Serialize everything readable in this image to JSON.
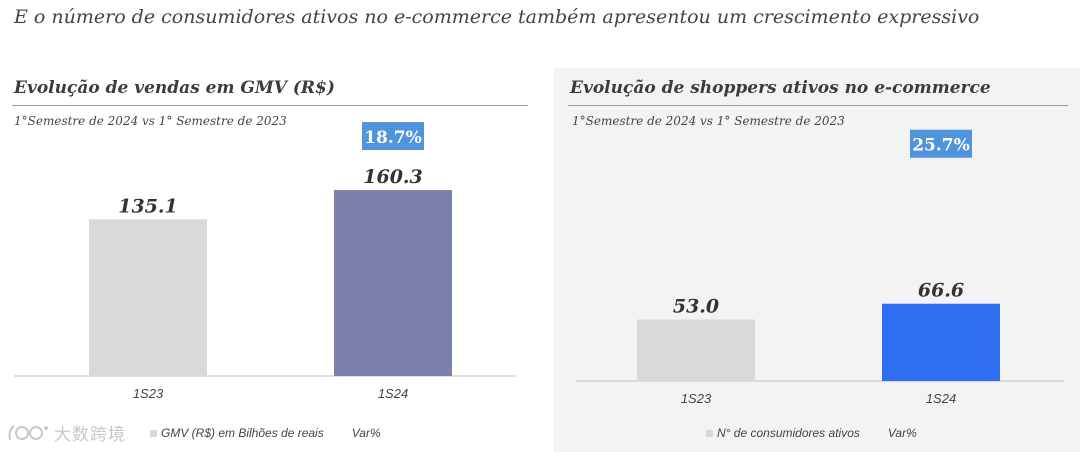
{
  "headline": "E o número de consumidores ativos no e-commerce também apresentou um crescimento expressivo",
  "watermark": {
    "text": "大数跨境",
    "icon": "logo-icon"
  },
  "chart_data": [
    {
      "type": "bar",
      "title": "Evolução de vendas em GMV (R$)",
      "subtitle": "1°Semestre de 2024 vs 1° Semestre de 2023",
      "categories": [
        "1S23",
        "1S24"
      ],
      "series": [
        {
          "name": "GMV (R$) em Bilhões de reais",
          "values": [
            135.1,
            160.3
          ],
          "value_labels": [
            "135.1",
            "160.3"
          ]
        }
      ],
      "variation": {
        "name": "Var%",
        "value": 18.7,
        "label": "18.7%",
        "category": "1S24"
      },
      "ylim": [
        0,
        250
      ],
      "colors": {
        "1S23": "#d9d9d9",
        "1S24": "#7b7fab",
        "variation_badge": "#4f94dc"
      },
      "legend_position": "bottom",
      "grid": false
    },
    {
      "type": "bar",
      "title": "Evolução de shoppers ativos no e-commerce",
      "subtitle": "1°Semestre de 2024 vs 1° Semestre de 2023",
      "categories": [
        "1S23",
        "1S24"
      ],
      "series": [
        {
          "name": "N° de consumidores ativos",
          "values": [
            53.0,
            66.6
          ],
          "value_labels": [
            "53.0",
            "66.6"
          ]
        }
      ],
      "variation": {
        "name": "Var%",
        "value": 25.7,
        "label": "25.7%",
        "category": "1S24"
      },
      "ylim": [
        0,
        250
      ],
      "colors": {
        "1S23": "#d9d9d9",
        "1S24": "#2e6ef0",
        "variation_badge": "#4f94dc"
      },
      "legend_position": "bottom",
      "grid": false
    }
  ]
}
